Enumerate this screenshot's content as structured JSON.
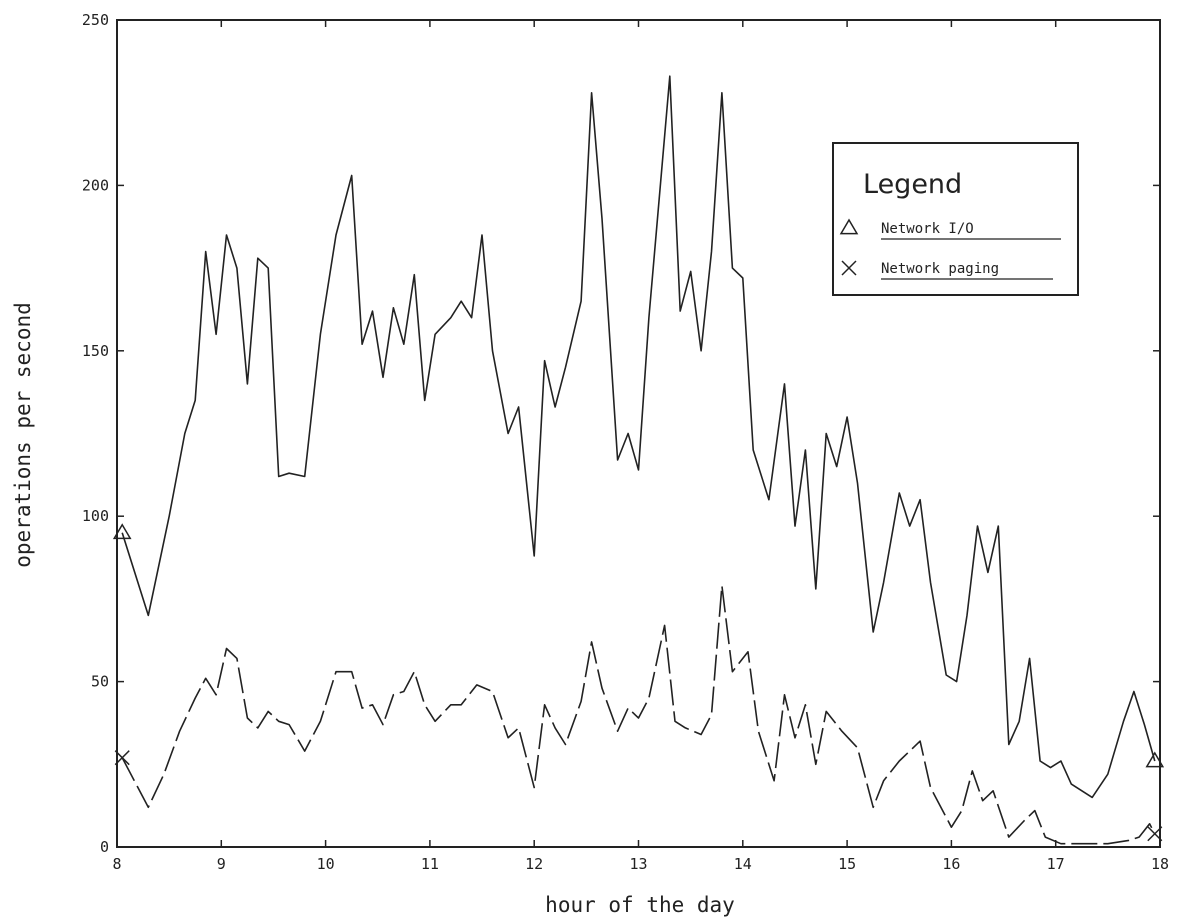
{
  "chart_data": {
    "type": "line",
    "title": "",
    "xlabel": "hour of the day",
    "ylabel": "operations per second",
    "xlim": [
      8,
      18
    ],
    "ylim": [
      0,
      250
    ],
    "x_ticks": [
      "8",
      "9",
      "10",
      "11",
      "12",
      "13",
      "14",
      "15",
      "16",
      "17",
      "18"
    ],
    "y_ticks": [
      "0",
      "50",
      "100",
      "150",
      "200",
      "250"
    ],
    "grid": false,
    "legend": {
      "title": "Legend",
      "position": "top-right",
      "entries": [
        {
          "marker": "triangle",
          "label": "Network I/O"
        },
        {
          "marker": "cross",
          "label": "Network paging"
        }
      ]
    },
    "series": [
      {
        "name": "Network I/O",
        "style": "solid",
        "color": "#222222",
        "marker": "triangle",
        "points": [
          [
            8.05,
            95
          ],
          [
            8.3,
            70
          ],
          [
            8.5,
            100
          ],
          [
            8.65,
            125
          ],
          [
            8.75,
            135
          ],
          [
            8.85,
            180
          ],
          [
            8.95,
            155
          ],
          [
            9.05,
            185
          ],
          [
            9.15,
            175
          ],
          [
            9.25,
            140
          ],
          [
            9.35,
            178
          ],
          [
            9.45,
            175
          ],
          [
            9.55,
            112
          ],
          [
            9.65,
            113
          ],
          [
            9.8,
            112
          ],
          [
            9.95,
            155
          ],
          [
            10.1,
            185
          ],
          [
            10.25,
            203
          ],
          [
            10.35,
            152
          ],
          [
            10.45,
            162
          ],
          [
            10.55,
            142
          ],
          [
            10.65,
            163
          ],
          [
            10.75,
            152
          ],
          [
            10.85,
            173
          ],
          [
            10.95,
            135
          ],
          [
            11.05,
            155
          ],
          [
            11.2,
            160
          ],
          [
            11.3,
            165
          ],
          [
            11.4,
            160
          ],
          [
            11.5,
            185
          ],
          [
            11.6,
            150
          ],
          [
            11.75,
            125
          ],
          [
            11.85,
            133
          ],
          [
            12.0,
            88
          ],
          [
            12.1,
            147
          ],
          [
            12.2,
            133
          ],
          [
            12.3,
            145
          ],
          [
            12.45,
            165
          ],
          [
            12.55,
            228
          ],
          [
            12.65,
            190
          ],
          [
            12.8,
            117
          ],
          [
            12.9,
            125
          ],
          [
            13.0,
            114
          ],
          [
            13.1,
            160
          ],
          [
            13.3,
            233
          ],
          [
            13.4,
            162
          ],
          [
            13.5,
            174
          ],
          [
            13.6,
            150
          ],
          [
            13.7,
            180
          ],
          [
            13.8,
            228
          ],
          [
            13.9,
            175
          ],
          [
            14.0,
            172
          ],
          [
            14.1,
            120
          ],
          [
            14.25,
            105
          ],
          [
            14.4,
            140
          ],
          [
            14.5,
            97
          ],
          [
            14.6,
            120
          ],
          [
            14.7,
            78
          ],
          [
            14.8,
            125
          ],
          [
            14.9,
            115
          ],
          [
            15.0,
            130
          ],
          [
            15.1,
            110
          ],
          [
            15.25,
            65
          ],
          [
            15.35,
            80
          ],
          [
            15.5,
            107
          ],
          [
            15.6,
            97
          ],
          [
            15.7,
            105
          ],
          [
            15.8,
            80
          ],
          [
            15.95,
            52
          ],
          [
            16.05,
            50
          ],
          [
            16.15,
            70
          ],
          [
            16.25,
            97
          ],
          [
            16.35,
            83
          ],
          [
            16.45,
            97
          ],
          [
            16.55,
            31
          ],
          [
            16.65,
            38
          ],
          [
            16.75,
            57
          ],
          [
            16.85,
            26
          ],
          [
            16.95,
            24
          ],
          [
            17.05,
            26
          ],
          [
            17.15,
            19
          ],
          [
            17.35,
            15
          ],
          [
            17.5,
            22
          ],
          [
            17.65,
            38
          ],
          [
            17.75,
            47
          ],
          [
            17.85,
            37
          ],
          [
            17.95,
            26
          ]
        ]
      },
      {
        "name": "Network paging",
        "style": "dashed",
        "color": "#222222",
        "marker": "cross",
        "points": [
          [
            8.05,
            27
          ],
          [
            8.3,
            12
          ],
          [
            8.45,
            22
          ],
          [
            8.6,
            35
          ],
          [
            8.75,
            45
          ],
          [
            8.85,
            51
          ],
          [
            8.95,
            46
          ],
          [
            9.05,
            60
          ],
          [
            9.15,
            57
          ],
          [
            9.25,
            39
          ],
          [
            9.35,
            36
          ],
          [
            9.45,
            41
          ],
          [
            9.55,
            38
          ],
          [
            9.65,
            37
          ],
          [
            9.8,
            29
          ],
          [
            9.95,
            38
          ],
          [
            10.1,
            53
          ],
          [
            10.25,
            53
          ],
          [
            10.35,
            42
          ],
          [
            10.45,
            43
          ],
          [
            10.55,
            37
          ],
          [
            10.65,
            46
          ],
          [
            10.75,
            47
          ],
          [
            10.85,
            53
          ],
          [
            10.95,
            43
          ],
          [
            11.05,
            38
          ],
          [
            11.2,
            43
          ],
          [
            11.3,
            43
          ],
          [
            11.45,
            49
          ],
          [
            11.6,
            47
          ],
          [
            11.75,
            33
          ],
          [
            11.85,
            36
          ],
          [
            12.0,
            18
          ],
          [
            12.1,
            43
          ],
          [
            12.2,
            36
          ],
          [
            12.3,
            31
          ],
          [
            12.45,
            44
          ],
          [
            12.55,
            62
          ],
          [
            12.65,
            48
          ],
          [
            12.8,
            35
          ],
          [
            12.9,
            42
          ],
          [
            13.0,
            39
          ],
          [
            13.1,
            45
          ],
          [
            13.25,
            67
          ],
          [
            13.35,
            38
          ],
          [
            13.45,
            36
          ],
          [
            13.6,
            34
          ],
          [
            13.7,
            40
          ],
          [
            13.8,
            79
          ],
          [
            13.9,
            53
          ],
          [
            14.05,
            59
          ],
          [
            14.15,
            35
          ],
          [
            14.3,
            20
          ],
          [
            14.4,
            46
          ],
          [
            14.5,
            33
          ],
          [
            14.6,
            43
          ],
          [
            14.7,
            25
          ],
          [
            14.8,
            41
          ],
          [
            14.95,
            35
          ],
          [
            15.1,
            30
          ],
          [
            15.25,
            12
          ],
          [
            15.35,
            20
          ],
          [
            15.5,
            26
          ],
          [
            15.7,
            32
          ],
          [
            15.8,
            18
          ],
          [
            16.0,
            6
          ],
          [
            16.1,
            11
          ],
          [
            16.2,
            23
          ],
          [
            16.3,
            14
          ],
          [
            16.4,
            17
          ],
          [
            16.55,
            3
          ],
          [
            16.7,
            8
          ],
          [
            16.8,
            11
          ],
          [
            16.9,
            3
          ],
          [
            17.05,
            1
          ],
          [
            17.3,
            1
          ],
          [
            17.5,
            1
          ],
          [
            17.7,
            2
          ],
          [
            17.8,
            3
          ],
          [
            17.9,
            7
          ],
          [
            17.95,
            4
          ]
        ]
      }
    ]
  }
}
